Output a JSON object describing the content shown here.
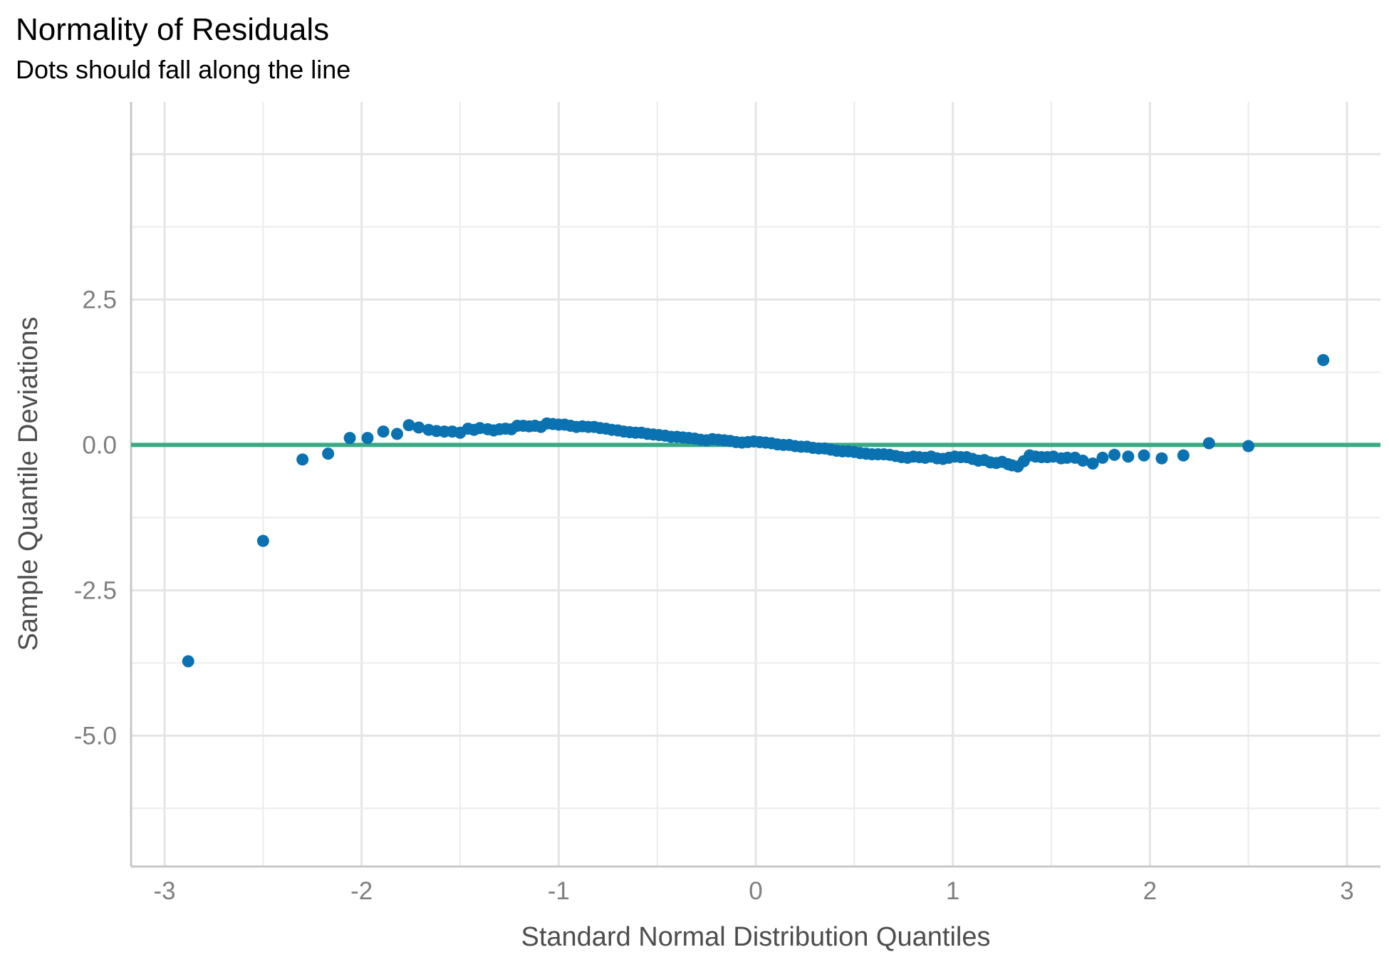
{
  "chart_data": {
    "type": "scatter",
    "title": "Normality of Residuals",
    "subtitle": "Dots should fall along the line",
    "xlabel": "Standard Normal Distribution Quantiles",
    "ylabel": "Sample Quantile Deviations",
    "xlim": [
      -3.17,
      3.17
    ],
    "ylim": [
      -7.25,
      5.9
    ],
    "x_ticks": [
      -3,
      -2,
      -1,
      0,
      1,
      2,
      3
    ],
    "x_tick_labels": [
      "-3",
      "-2",
      "-1",
      "0",
      "1",
      "2",
      "3"
    ],
    "y_ticks": [
      2.5,
      0.0,
      -2.5,
      -5.0
    ],
    "y_tick_labels": [
      "2.5",
      "0.0",
      "-2.5",
      "-5.0"
    ],
    "grid": true,
    "reference_line": {
      "y": 0,
      "color": "#3aaa85"
    },
    "point_color": "#0a72b0",
    "series": [
      {
        "points": [
          [
            -2.88,
            -3.72
          ],
          [
            -2.5,
            -1.65
          ],
          [
            -2.3,
            -0.25
          ],
          [
            -2.17,
            -0.15
          ],
          [
            -2.06,
            0.12
          ],
          [
            -1.97,
            0.12
          ],
          [
            -1.89,
            0.23
          ],
          [
            -1.82,
            0.19
          ],
          [
            -1.76,
            0.34
          ],
          [
            -1.71,
            0.3
          ],
          [
            -1.66,
            0.26
          ],
          [
            -1.62,
            0.24
          ],
          [
            -1.58,
            0.23
          ],
          [
            -1.54,
            0.23
          ],
          [
            -1.5,
            0.21
          ],
          [
            -1.46,
            0.28
          ],
          [
            -1.43,
            0.26
          ],
          [
            -1.4,
            0.29
          ],
          [
            -1.36,
            0.27
          ],
          [
            -1.33,
            0.25
          ],
          [
            -1.3,
            0.27
          ],
          [
            -1.27,
            0.28
          ],
          [
            -1.24,
            0.27
          ],
          [
            -1.21,
            0.33
          ],
          [
            -1.18,
            0.33
          ],
          [
            -1.15,
            0.32
          ],
          [
            -1.12,
            0.33
          ],
          [
            -1.09,
            0.31
          ],
          [
            -1.06,
            0.37
          ],
          [
            -1.03,
            0.36
          ],
          [
            -1.0,
            0.35
          ],
          [
            -0.97,
            0.35
          ],
          [
            -0.94,
            0.33
          ],
          [
            -0.91,
            0.31
          ],
          [
            -0.88,
            0.32
          ],
          [
            -0.85,
            0.31
          ],
          [
            -0.82,
            0.31
          ],
          [
            -0.79,
            0.29
          ],
          [
            -0.76,
            0.28
          ],
          [
            -0.73,
            0.26
          ],
          [
            -0.7,
            0.25
          ],
          [
            -0.67,
            0.23
          ],
          [
            -0.64,
            0.22
          ],
          [
            -0.61,
            0.21
          ],
          [
            -0.58,
            0.21
          ],
          [
            -0.55,
            0.19
          ],
          [
            -0.52,
            0.18
          ],
          [
            -0.49,
            0.17
          ],
          [
            -0.46,
            0.16
          ],
          [
            -0.43,
            0.14
          ],
          [
            -0.4,
            0.14
          ],
          [
            -0.37,
            0.13
          ],
          [
            -0.34,
            0.12
          ],
          [
            -0.31,
            0.11
          ],
          [
            -0.28,
            0.09
          ],
          [
            -0.25,
            0.08
          ],
          [
            -0.22,
            0.1
          ],
          [
            -0.19,
            0.09
          ],
          [
            -0.16,
            0.08
          ],
          [
            -0.13,
            0.07
          ],
          [
            -0.1,
            0.05
          ],
          [
            -0.07,
            0.04
          ],
          [
            -0.04,
            0.05
          ],
          [
            -0.01,
            0.06
          ],
          [
            0.02,
            0.05
          ],
          [
            0.05,
            0.04
          ],
          [
            0.08,
            0.03
          ],
          [
            0.11,
            0.01
          ],
          [
            0.14,
            0.0
          ],
          [
            0.17,
            0.0
          ],
          [
            0.2,
            -0.02
          ],
          [
            0.23,
            -0.03
          ],
          [
            0.26,
            -0.03
          ],
          [
            0.29,
            -0.05
          ],
          [
            0.32,
            -0.06
          ],
          [
            0.35,
            -0.06
          ],
          [
            0.38,
            -0.08
          ],
          [
            0.41,
            -0.1
          ],
          [
            0.44,
            -0.11
          ],
          [
            0.47,
            -0.11
          ],
          [
            0.5,
            -0.12
          ],
          [
            0.53,
            -0.14
          ],
          [
            0.56,
            -0.15
          ],
          [
            0.59,
            -0.16
          ],
          [
            0.62,
            -0.16
          ],
          [
            0.65,
            -0.16
          ],
          [
            0.68,
            -0.17
          ],
          [
            0.71,
            -0.19
          ],
          [
            0.74,
            -0.21
          ],
          [
            0.77,
            -0.22
          ],
          [
            0.8,
            -0.2
          ],
          [
            0.83,
            -0.21
          ],
          [
            0.86,
            -0.22
          ],
          [
            0.89,
            -0.2
          ],
          [
            0.92,
            -0.23
          ],
          [
            0.95,
            -0.24
          ],
          [
            0.98,
            -0.22
          ],
          [
            1.01,
            -0.2
          ],
          [
            1.04,
            -0.21
          ],
          [
            1.07,
            -0.21
          ],
          [
            1.1,
            -0.24
          ],
          [
            1.13,
            -0.27
          ],
          [
            1.16,
            -0.26
          ],
          [
            1.19,
            -0.3
          ],
          [
            1.22,
            -0.31
          ],
          [
            1.25,
            -0.29
          ],
          [
            1.28,
            -0.33
          ],
          [
            1.3,
            -0.35
          ],
          [
            1.33,
            -0.37
          ],
          [
            1.36,
            -0.28
          ],
          [
            1.39,
            -0.18
          ],
          [
            1.42,
            -0.2
          ],
          [
            1.45,
            -0.21
          ],
          [
            1.48,
            -0.21
          ],
          [
            1.51,
            -0.2
          ],
          [
            1.55,
            -0.23
          ],
          [
            1.58,
            -0.22
          ],
          [
            1.62,
            -0.22
          ],
          [
            1.66,
            -0.27
          ],
          [
            1.71,
            -0.32
          ],
          [
            1.76,
            -0.22
          ],
          [
            1.82,
            -0.17
          ],
          [
            1.89,
            -0.2
          ],
          [
            1.97,
            -0.18
          ],
          [
            2.06,
            -0.23
          ],
          [
            2.17,
            -0.18
          ],
          [
            2.3,
            0.03
          ],
          [
            2.5,
            -0.02
          ],
          [
            2.88,
            1.46
          ]
        ]
      }
    ]
  }
}
